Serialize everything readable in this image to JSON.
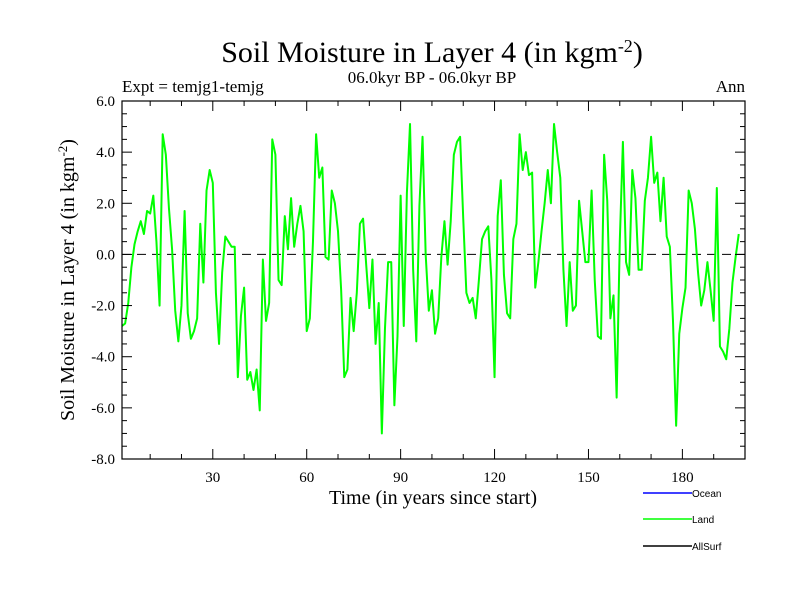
{
  "chart_data": {
    "type": "line",
    "title": "Soil Moisture in Layer 4 (in kgm",
    "title_sup": "-2",
    "title_close": ")",
    "subtitle": "06.0kyr BP - 06.0kyr BP",
    "left_note": "Expt = temjg1-temjg",
    "right_note": "Ann",
    "xlabel": "Time (in years since start)",
    "ylabel": "Soil Moisture in Layer 4 (in kgm",
    "ylabel_sup": "-2",
    "ylabel_close": ")",
    "xlim": [
      1,
      200
    ],
    "ylim": [
      -8,
      6
    ],
    "xticks": [
      30,
      60,
      90,
      120,
      150,
      180
    ],
    "xtick_labels": [
      "30",
      "60",
      "90",
      "120",
      "150",
      "180"
    ],
    "yticks": [
      -8,
      -6,
      -4,
      -2,
      0,
      2,
      4,
      6
    ],
    "ytick_labels": [
      "-8.0",
      "-6.0",
      "-4.0",
      "-2.0",
      "0.0",
      "2.0",
      "4.0",
      "6.0"
    ],
    "reference_line": 0,
    "legend": [
      {
        "name": "Ocean",
        "color": "#0000ff"
      },
      {
        "name": "Land",
        "color": "#00ff00"
      },
      {
        "name": "AllSurf",
        "color": "#000000"
      }
    ],
    "series": [
      {
        "name": "Land",
        "color": "#00ff00",
        "x_start": 1,
        "values": [
          -2.8,
          -2.7,
          -1.9,
          -0.5,
          0.4,
          0.9,
          1.3,
          0.8,
          1.7,
          1.6,
          2.3,
          0.5,
          -2.0,
          4.7,
          3.9,
          1.8,
          0.2,
          -2.2,
          -3.4,
          -2.0,
          1.7,
          -2.3,
          -3.3,
          -3.0,
          -2.5,
          1.2,
          -1.1,
          2.5,
          3.3,
          2.8,
          -1.5,
          -3.5,
          -0.7,
          0.7,
          0.5,
          0.3,
          0.3,
          -4.8,
          -2.4,
          -1.3,
          -4.9,
          -4.6,
          -5.3,
          -4.5,
          -6.1,
          -0.2,
          -2.6,
          -1.9,
          4.5,
          3.9,
          -1.0,
          -1.2,
          1.5,
          0.2,
          2.2,
          0.3,
          1.2,
          1.9,
          0.9,
          -3.0,
          -2.5,
          0.5,
          4.7,
          3.0,
          3.4,
          -0.1,
          -0.2,
          2.5,
          2.0,
          0.9,
          -1.4,
          -4.8,
          -4.5,
          -1.7,
          -3.0,
          -1.5,
          1.2,
          1.4,
          -0.4,
          -2.1,
          -0.2,
          -3.5,
          -1.9,
          -7.0,
          -2.9,
          -0.3,
          -0.3,
          -5.9,
          -3.2,
          2.3,
          -2.8,
          2.4,
          5.1,
          -0.6,
          -3.4,
          1.9,
          4.6,
          0.0,
          -2.2,
          -1.4,
          -3.1,
          -2.5,
          -0.1,
          1.3,
          -0.4,
          1.3,
          3.9,
          4.4,
          4.6,
          1.4,
          -1.5,
          -1.9,
          -1.7,
          -2.5,
          -1.0,
          0.6,
          0.9,
          1.1,
          -1.0,
          -4.8,
          1.5,
          2.9,
          -0.8,
          -2.3,
          -2.5,
          0.6,
          1.2,
          4.7,
          3.3,
          4.0,
          3.1,
          3.2,
          -1.3,
          -0.3,
          0.9,
          2.0,
          3.3,
          2.0,
          5.1,
          4.0,
          3.0,
          -0.6,
          -2.8,
          -0.3,
          -2.2,
          -2.0,
          2.1,
          0.9,
          -0.3,
          -0.3,
          2.5,
          -1.0,
          -3.2,
          -3.3,
          3.9,
          2.1,
          -2.5,
          -1.6,
          -5.6,
          0.5,
          4.4,
          -0.3,
          -0.8,
          3.3,
          2.2,
          -0.6,
          -0.6,
          2.1,
          3.0,
          4.6,
          2.8,
          3.2,
          1.3,
          3.0,
          0.7,
          0.3,
          -2.6,
          -6.7,
          -3.1,
          -2.1,
          -1.3,
          2.5,
          2.0,
          1.0,
          -0.7,
          -2.0,
          -1.4,
          -0.3,
          -1.4,
          -2.6,
          2.6,
          -3.6,
          -3.8,
          -4.1,
          -2.9,
          -1.1,
          -0.1,
          0.8
        ]
      }
    ]
  }
}
